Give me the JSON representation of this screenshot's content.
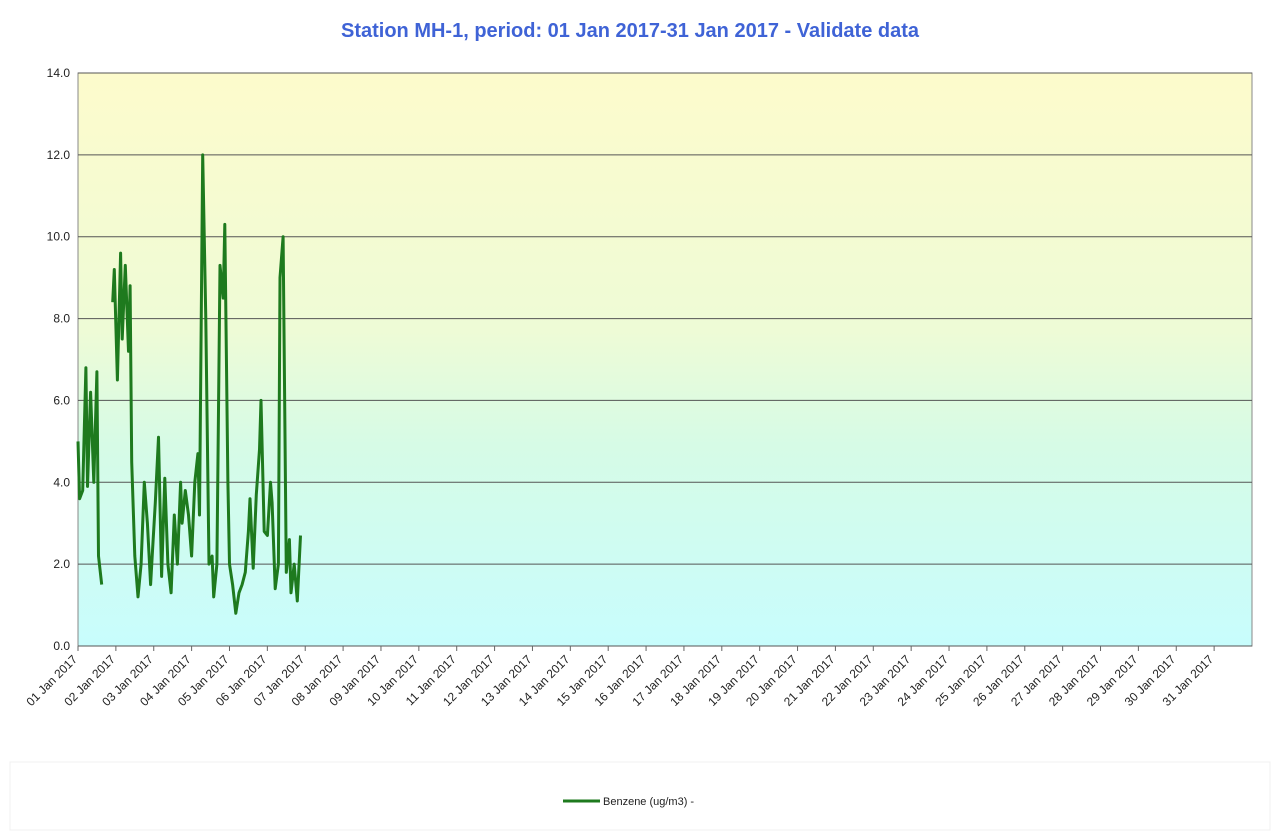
{
  "chart_data": {
    "type": "line",
    "title": "Station MH-1, period: 01 Jan 2017-31 Jan 2017 - Validate data",
    "x": [
      0,
      1,
      3,
      5,
      6,
      8,
      10,
      12,
      13,
      15,
      18,
      22,
      23,
      25,
      27,
      28,
      30,
      32,
      33,
      34,
      36,
      38,
      40,
      42,
      44,
      46,
      47,
      49,
      51,
      53,
      55,
      57,
      59,
      61,
      63,
      65,
      66,
      68,
      70,
      72,
      74,
      76,
      77,
      79,
      81,
      83,
      85,
      86,
      88,
      90,
      92,
      93,
      95,
      96,
      98,
      100,
      102,
      104,
      106,
      108,
      109,
      111,
      113,
      115,
      116,
      118,
      120,
      122,
      123,
      125,
      127,
      128,
      130,
      132,
      134,
      135,
      137,
      139,
      141
    ],
    "series": [
      {
        "name": "Benzene (ug/m3) -",
        "color": "#1e7a1e",
        "values": [
          5.0,
          3.6,
          3.8,
          6.8,
          3.9,
          6.2,
          4.0,
          6.7,
          2.2,
          1.5,
          null,
          8.4,
          9.2,
          6.5,
          9.6,
          7.5,
          9.3,
          7.2,
          8.8,
          4.5,
          2.2,
          1.2,
          2.0,
          4.0,
          3.0,
          1.5,
          2.2,
          3.5,
          5.1,
          1.7,
          4.1,
          2.0,
          1.3,
          3.2,
          2.0,
          4.0,
          3.0,
          3.8,
          3.2,
          2.2,
          4.0,
          4.7,
          3.2,
          12.0,
          8.0,
          2.0,
          2.2,
          1.2,
          2.0,
          9.3,
          8.5,
          10.3,
          4.0,
          2.0,
          1.5,
          0.8,
          1.3,
          1.5,
          1.8,
          2.8,
          3.6,
          1.9,
          3.7,
          4.8,
          6.0,
          2.8,
          2.7,
          4.0,
          3.5,
          1.4,
          2.0,
          9.0,
          10.0,
          1.8,
          2.6,
          1.3,
          2.0,
          1.1,
          2.7
        ]
      }
    ],
    "xlim": [
      0,
      744
    ],
    "xticks": [
      {
        "value": 0,
        "label": "01 Jan 2017"
      },
      {
        "value": 24,
        "label": "02 Jan 2017"
      },
      {
        "value": 48,
        "label": "03 Jan 2017"
      },
      {
        "value": 72,
        "label": "04 Jan 2017"
      },
      {
        "value": 96,
        "label": "05 Jan 2017"
      },
      {
        "value": 120,
        "label": "06 Jan 2017"
      },
      {
        "value": 144,
        "label": "07 Jan 2017"
      },
      {
        "value": 168,
        "label": "08 Jan 2017"
      },
      {
        "value": 192,
        "label": "09 Jan 2017"
      },
      {
        "value": 216,
        "label": "10 Jan 2017"
      },
      {
        "value": 240,
        "label": "11 Jan 2017"
      },
      {
        "value": 264,
        "label": "12 Jan 2017"
      },
      {
        "value": 288,
        "label": "13 Jan 2017"
      },
      {
        "value": 312,
        "label": "14 Jan 2017"
      },
      {
        "value": 336,
        "label": "15 Jan 2017"
      },
      {
        "value": 360,
        "label": "16 Jan 2017"
      },
      {
        "value": 384,
        "label": "17 Jan 2017"
      },
      {
        "value": 408,
        "label": "18 Jan 2017"
      },
      {
        "value": 432,
        "label": "19 Jan 2017"
      },
      {
        "value": 456,
        "label": "20 Jan 2017"
      },
      {
        "value": 480,
        "label": "21 Jan 2017"
      },
      {
        "value": 504,
        "label": "22 Jan 2017"
      },
      {
        "value": 528,
        "label": "23 Jan 2017"
      },
      {
        "value": 552,
        "label": "24 Jan 2017"
      },
      {
        "value": 576,
        "label": "25 Jan 2017"
      },
      {
        "value": 600,
        "label": "26 Jan 2017"
      },
      {
        "value": 624,
        "label": "27 Jan 2017"
      },
      {
        "value": 648,
        "label": "28 Jan 2017"
      },
      {
        "value": 672,
        "label": "29 Jan 2017"
      },
      {
        "value": 696,
        "label": "30 Jan 2017"
      },
      {
        "value": 720,
        "label": "31 Jan 2017"
      }
    ],
    "ylim": [
      0,
      14
    ],
    "yticks": [
      {
        "value": 0,
        "label": "0.0"
      },
      {
        "value": 2,
        "label": "2.0"
      },
      {
        "value": 4,
        "label": "4.0"
      },
      {
        "value": 6,
        "label": "6.0"
      },
      {
        "value": 8,
        "label": "8.0"
      },
      {
        "value": 10,
        "label": "10.0"
      },
      {
        "value": 12,
        "label": "12.0"
      },
      {
        "value": 14,
        "label": "14.0"
      }
    ],
    "grid": true,
    "legend": "bottom"
  }
}
